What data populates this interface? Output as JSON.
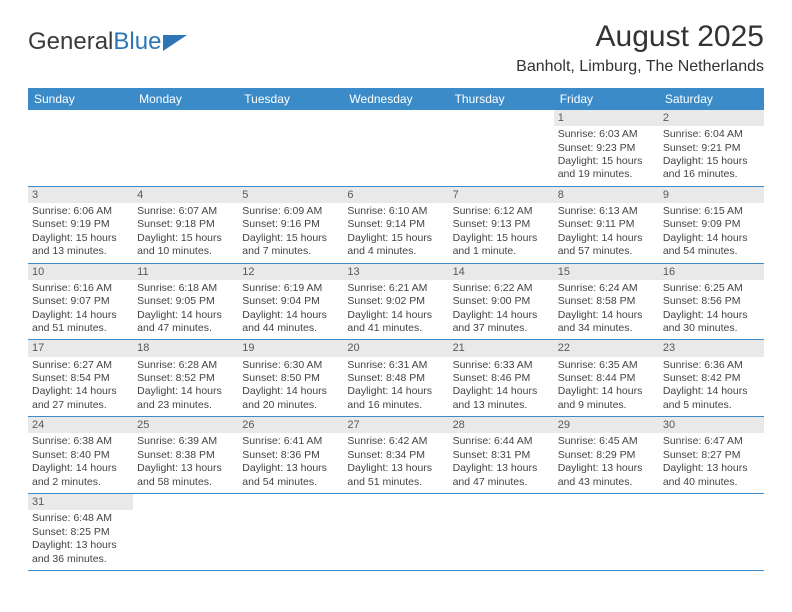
{
  "logo": {
    "part1": "General",
    "part2": "Blue"
  },
  "title": "August 2025",
  "location": "Banholt, Limburg, The Netherlands",
  "colors": {
    "header_bg": "#3b8bc9",
    "header_fg": "#ffffff",
    "daynum_bg": "#e9e9e9",
    "daynum_fg": "#595959",
    "divider": "#3b8bc9",
    "logo_blue": "#2e75b6"
  },
  "weekdays": [
    "Sunday",
    "Monday",
    "Tuesday",
    "Wednesday",
    "Thursday",
    "Friday",
    "Saturday"
  ],
  "weeks": [
    [
      null,
      null,
      null,
      null,
      null,
      {
        "day": "1",
        "sunrise": "Sunrise: 6:03 AM",
        "sunset": "Sunset: 9:23 PM",
        "daylight1": "Daylight: 15 hours",
        "daylight2": "and 19 minutes."
      },
      {
        "day": "2",
        "sunrise": "Sunrise: 6:04 AM",
        "sunset": "Sunset: 9:21 PM",
        "daylight1": "Daylight: 15 hours",
        "daylight2": "and 16 minutes."
      }
    ],
    [
      {
        "day": "3",
        "sunrise": "Sunrise: 6:06 AM",
        "sunset": "Sunset: 9:19 PM",
        "daylight1": "Daylight: 15 hours",
        "daylight2": "and 13 minutes."
      },
      {
        "day": "4",
        "sunrise": "Sunrise: 6:07 AM",
        "sunset": "Sunset: 9:18 PM",
        "daylight1": "Daylight: 15 hours",
        "daylight2": "and 10 minutes."
      },
      {
        "day": "5",
        "sunrise": "Sunrise: 6:09 AM",
        "sunset": "Sunset: 9:16 PM",
        "daylight1": "Daylight: 15 hours",
        "daylight2": "and 7 minutes."
      },
      {
        "day": "6",
        "sunrise": "Sunrise: 6:10 AM",
        "sunset": "Sunset: 9:14 PM",
        "daylight1": "Daylight: 15 hours",
        "daylight2": "and 4 minutes."
      },
      {
        "day": "7",
        "sunrise": "Sunrise: 6:12 AM",
        "sunset": "Sunset: 9:13 PM",
        "daylight1": "Daylight: 15 hours",
        "daylight2": "and 1 minute."
      },
      {
        "day": "8",
        "sunrise": "Sunrise: 6:13 AM",
        "sunset": "Sunset: 9:11 PM",
        "daylight1": "Daylight: 14 hours",
        "daylight2": "and 57 minutes."
      },
      {
        "day": "9",
        "sunrise": "Sunrise: 6:15 AM",
        "sunset": "Sunset: 9:09 PM",
        "daylight1": "Daylight: 14 hours",
        "daylight2": "and 54 minutes."
      }
    ],
    [
      {
        "day": "10",
        "sunrise": "Sunrise: 6:16 AM",
        "sunset": "Sunset: 9:07 PM",
        "daylight1": "Daylight: 14 hours",
        "daylight2": "and 51 minutes."
      },
      {
        "day": "11",
        "sunrise": "Sunrise: 6:18 AM",
        "sunset": "Sunset: 9:05 PM",
        "daylight1": "Daylight: 14 hours",
        "daylight2": "and 47 minutes."
      },
      {
        "day": "12",
        "sunrise": "Sunrise: 6:19 AM",
        "sunset": "Sunset: 9:04 PM",
        "daylight1": "Daylight: 14 hours",
        "daylight2": "and 44 minutes."
      },
      {
        "day": "13",
        "sunrise": "Sunrise: 6:21 AM",
        "sunset": "Sunset: 9:02 PM",
        "daylight1": "Daylight: 14 hours",
        "daylight2": "and 41 minutes."
      },
      {
        "day": "14",
        "sunrise": "Sunrise: 6:22 AM",
        "sunset": "Sunset: 9:00 PM",
        "daylight1": "Daylight: 14 hours",
        "daylight2": "and 37 minutes."
      },
      {
        "day": "15",
        "sunrise": "Sunrise: 6:24 AM",
        "sunset": "Sunset: 8:58 PM",
        "daylight1": "Daylight: 14 hours",
        "daylight2": "and 34 minutes."
      },
      {
        "day": "16",
        "sunrise": "Sunrise: 6:25 AM",
        "sunset": "Sunset: 8:56 PM",
        "daylight1": "Daylight: 14 hours",
        "daylight2": "and 30 minutes."
      }
    ],
    [
      {
        "day": "17",
        "sunrise": "Sunrise: 6:27 AM",
        "sunset": "Sunset: 8:54 PM",
        "daylight1": "Daylight: 14 hours",
        "daylight2": "and 27 minutes."
      },
      {
        "day": "18",
        "sunrise": "Sunrise: 6:28 AM",
        "sunset": "Sunset: 8:52 PM",
        "daylight1": "Daylight: 14 hours",
        "daylight2": "and 23 minutes."
      },
      {
        "day": "19",
        "sunrise": "Sunrise: 6:30 AM",
        "sunset": "Sunset: 8:50 PM",
        "daylight1": "Daylight: 14 hours",
        "daylight2": "and 20 minutes."
      },
      {
        "day": "20",
        "sunrise": "Sunrise: 6:31 AM",
        "sunset": "Sunset: 8:48 PM",
        "daylight1": "Daylight: 14 hours",
        "daylight2": "and 16 minutes."
      },
      {
        "day": "21",
        "sunrise": "Sunrise: 6:33 AM",
        "sunset": "Sunset: 8:46 PM",
        "daylight1": "Daylight: 14 hours",
        "daylight2": "and 13 minutes."
      },
      {
        "day": "22",
        "sunrise": "Sunrise: 6:35 AM",
        "sunset": "Sunset: 8:44 PM",
        "daylight1": "Daylight: 14 hours",
        "daylight2": "and 9 minutes."
      },
      {
        "day": "23",
        "sunrise": "Sunrise: 6:36 AM",
        "sunset": "Sunset: 8:42 PM",
        "daylight1": "Daylight: 14 hours",
        "daylight2": "and 5 minutes."
      }
    ],
    [
      {
        "day": "24",
        "sunrise": "Sunrise: 6:38 AM",
        "sunset": "Sunset: 8:40 PM",
        "daylight1": "Daylight: 14 hours",
        "daylight2": "and 2 minutes."
      },
      {
        "day": "25",
        "sunrise": "Sunrise: 6:39 AM",
        "sunset": "Sunset: 8:38 PM",
        "daylight1": "Daylight: 13 hours",
        "daylight2": "and 58 minutes."
      },
      {
        "day": "26",
        "sunrise": "Sunrise: 6:41 AM",
        "sunset": "Sunset: 8:36 PM",
        "daylight1": "Daylight: 13 hours",
        "daylight2": "and 54 minutes."
      },
      {
        "day": "27",
        "sunrise": "Sunrise: 6:42 AM",
        "sunset": "Sunset: 8:34 PM",
        "daylight1": "Daylight: 13 hours",
        "daylight2": "and 51 minutes."
      },
      {
        "day": "28",
        "sunrise": "Sunrise: 6:44 AM",
        "sunset": "Sunset: 8:31 PM",
        "daylight1": "Daylight: 13 hours",
        "daylight2": "and 47 minutes."
      },
      {
        "day": "29",
        "sunrise": "Sunrise: 6:45 AM",
        "sunset": "Sunset: 8:29 PM",
        "daylight1": "Daylight: 13 hours",
        "daylight2": "and 43 minutes."
      },
      {
        "day": "30",
        "sunrise": "Sunrise: 6:47 AM",
        "sunset": "Sunset: 8:27 PM",
        "daylight1": "Daylight: 13 hours",
        "daylight2": "and 40 minutes."
      }
    ],
    [
      {
        "day": "31",
        "sunrise": "Sunrise: 6:48 AM",
        "sunset": "Sunset: 8:25 PM",
        "daylight1": "Daylight: 13 hours",
        "daylight2": "and 36 minutes."
      },
      null,
      null,
      null,
      null,
      null,
      null
    ]
  ]
}
